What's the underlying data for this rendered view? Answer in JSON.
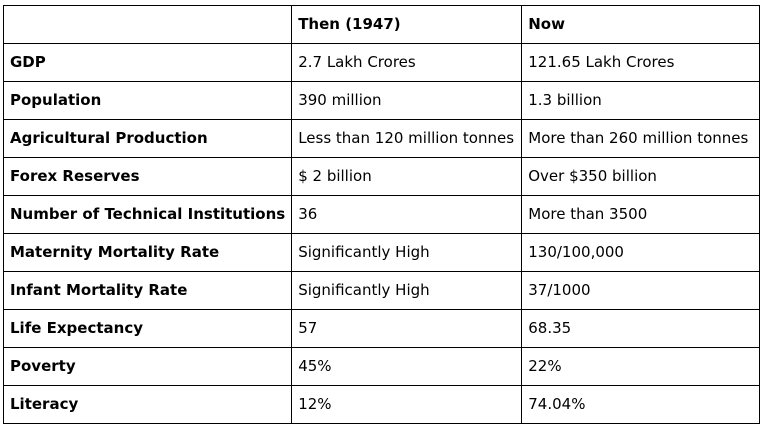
{
  "table": {
    "headers": [
      "",
      "Then (1947)",
      "Now"
    ],
    "rows": [
      {
        "label": "GDP",
        "then": "2.7 Lakh Crores",
        "now": "121.65 Lakh Crores"
      },
      {
        "label": "Population",
        "then": "390 million",
        "now": "1.3 billion"
      },
      {
        "label": "Agricultural Production",
        "then": "Less than 120 million tonnes",
        "now": "More than 260 million tonnes"
      },
      {
        "label": "Forex Reserves",
        "then": "$ 2 billion",
        "now": "Over $350 billion"
      },
      {
        "label": "Number of Technical Institutions",
        "then": "36",
        "now": "More than 3500"
      },
      {
        "label": "Maternity Mortality Rate",
        "then": "Significantly High",
        "now": "130/100,000"
      },
      {
        "label": "Infant Mortality Rate",
        "then": "Significantly High",
        "now": "37/1000"
      },
      {
        "label": "Life Expectancy",
        "then": "57",
        "now": "68.35"
      },
      {
        "label": "Poverty",
        "then": "45%",
        "now": "22%"
      },
      {
        "label": "Literacy",
        "then": "12%",
        "now": "74.04%"
      }
    ]
  }
}
